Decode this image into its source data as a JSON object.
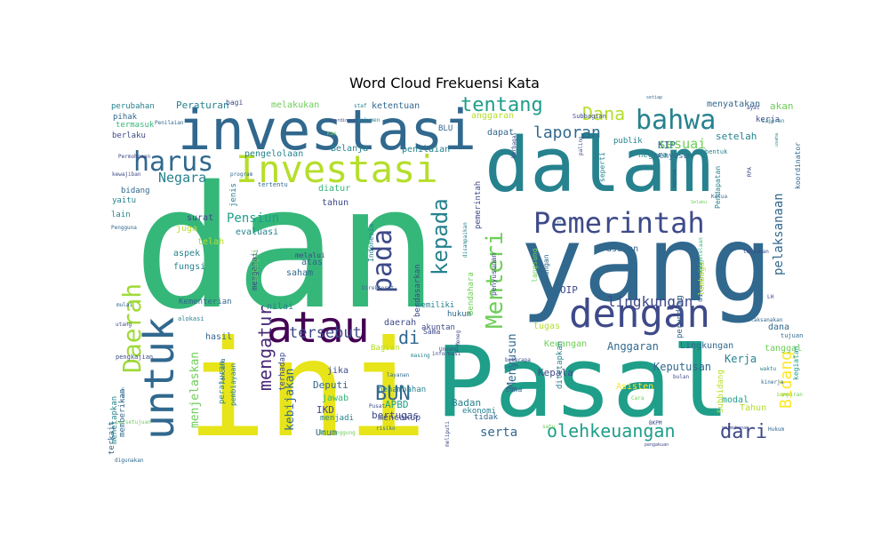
{
  "chart_data": {
    "type": "wordcloud",
    "title": "Word Cloud Frekuensi Kata",
    "colors": [
      "#440154",
      "#482878",
      "#3e4a89",
      "#31688e",
      "#26828e",
      "#1f9e89",
      "#35b779",
      "#6ece58",
      "#b5de2b",
      "#fde725"
    ],
    "words": [
      {
        "text": "dan",
        "weight": 100,
        "color": "#35b779"
      },
      {
        "text": "yang",
        "weight": 92,
        "color": "#31688e"
      },
      {
        "text": "ini",
        "weight": 90,
        "color": "#e7e419"
      },
      {
        "text": "Pasal",
        "weight": 86,
        "color": "#1f9e89"
      },
      {
        "text": "dalam",
        "weight": 68,
        "color": "#26828e"
      },
      {
        "text": "investasi",
        "weight": 60,
        "color": "#31688e"
      },
      {
        "text": "Investasi",
        "weight": 44,
        "color": "#b5de2b"
      },
      {
        "text": "dengan",
        "weight": 44,
        "color": "#3e4a89"
      },
      {
        "text": "untuk",
        "weight": 40,
        "color": "#31688e"
      },
      {
        "text": "atau",
        "weight": 42,
        "color": "#440154"
      },
      {
        "text": "Pemerintah",
        "weight": 34,
        "color": "#3e4a89"
      },
      {
        "text": "harus",
        "weight": 33,
        "color": "#31688e"
      },
      {
        "text": "bahwa",
        "weight": 32,
        "color": "#26828e"
      },
      {
        "text": "Daerah",
        "weight": 29,
        "color": "#a0da39"
      },
      {
        "text": "Menteri",
        "weight": 29,
        "color": "#6ece58"
      },
      {
        "text": "pada",
        "weight": 29,
        "color": "#3e4a89"
      },
      {
        "text": "kepada",
        "weight": 27,
        "color": "#26828e"
      },
      {
        "text": "tentang",
        "weight": 26,
        "color": "#1f9e89"
      },
      {
        "text": "mengatur",
        "weight": 22,
        "color": "#482878"
      },
      {
        "text": "Dana",
        "weight": 20,
        "color": "#b5de2b"
      },
      {
        "text": "dari",
        "weight": 20,
        "color": "#3e4a89"
      },
      {
        "text": "olehkeuangan",
        "weight": 20,
        "color": "#1f9e89"
      },
      {
        "text": "BUN",
        "weight": 20,
        "color": "#31688e"
      },
      {
        "text": "Bidang",
        "weight": 18,
        "color": "#fde725"
      },
      {
        "text": "laporan",
        "weight": 17,
        "color": "#31688e"
      },
      {
        "text": "lingkungan",
        "weight": 16,
        "color": "#3e4a89"
      },
      {
        "text": "tersebut",
        "weight": 16,
        "color": "#3e4a89"
      },
      {
        "text": "Negara",
        "weight": 14,
        "color": "#26828e"
      },
      {
        "text": "sesuai",
        "weight": 14,
        "color": "#6ece58"
      },
      {
        "text": "pelaksanaan",
        "weight": 13,
        "color": "#31688e"
      },
      {
        "text": "di",
        "weight": 15,
        "color": "#31688e"
      },
      {
        "text": "Pensiun",
        "weight": 13,
        "color": "#1f9e89"
      },
      {
        "text": "serta",
        "weight": 13,
        "color": "#31688e"
      },
      {
        "text": "kebijakan",
        "weight": 12,
        "color": "#31688e"
      },
      {
        "text": "menjelaskan",
        "weight": 12,
        "color": "#6ece58"
      },
      {
        "text": "Menyusun",
        "weight": 12,
        "color": "#31688e"
      },
      {
        "text": "Keputusan",
        "weight": 12,
        "color": "#31688e"
      },
      {
        "text": "Kerja",
        "weight": 12,
        "color": "#26828e"
      },
      {
        "text": "Anggaran",
        "weight": 12,
        "color": "#31688e"
      },
      {
        "text": "Deputi",
        "weight": 11,
        "color": "#31688e"
      },
      {
        "text": "Kepala",
        "weight": 11,
        "color": "#3e4a89"
      },
      {
        "text": "bertugas",
        "weight": 10,
        "color": "#3e4a89"
      },
      {
        "text": "Badan",
        "weight": 10,
        "color": "#26828e"
      },
      {
        "text": "setelah",
        "weight": 10,
        "color": "#26828e"
      },
      {
        "text": "akan",
        "weight": 10,
        "color": "#6ece58"
      },
      {
        "text": "KIP",
        "weight": 10,
        "color": "#31688e"
      },
      {
        "text": "OIP",
        "weight": 10,
        "color": "#3e4a89"
      },
      {
        "text": "IKD",
        "weight": 10,
        "color": "#3e4a89"
      },
      {
        "text": "APBD",
        "weight": 10,
        "color": "#1f9e89"
      },
      {
        "text": "Peraturan",
        "weight": 11,
        "color": "#26828e"
      },
      {
        "text": "menyatakan",
        "weight": 10,
        "color": "#31688e"
      },
      {
        "text": "Lingkungan",
        "weight": 10,
        "color": "#31688e"
      },
      {
        "text": "Keuangan",
        "weight": 10,
        "color": "#6ece58"
      },
      {
        "text": "evaluasi",
        "weight": 10,
        "color": "#26828e"
      },
      {
        "text": "surat",
        "weight": 10,
        "color": "#3e4a89"
      },
      {
        "text": "usulan",
        "weight": 10,
        "color": "#31688e"
      },
      {
        "text": "tugas",
        "weight": 10,
        "color": "#b5de2b"
      },
      {
        "text": "daerah",
        "weight": 10,
        "color": "#3e4a89"
      },
      {
        "text": "mencakup",
        "weight": 9,
        "color": "#3e4a89"
      },
      {
        "text": "Asisten",
        "weight": 9,
        "color": "#fde725"
      },
      {
        "text": "dana",
        "weight": 9,
        "color": "#31688e"
      },
      {
        "text": "Tahun",
        "weight": 9,
        "color": "#b5de2b"
      },
      {
        "text": "modal",
        "weight": 9,
        "color": "#1f9e89"
      },
      {
        "text": "pengelolaan",
        "weight": 9,
        "color": "#26828e"
      },
      {
        "text": "penilaian",
        "weight": 9,
        "color": "#26828e"
      },
      {
        "text": "anggaran",
        "weight": 9,
        "color": "#b5de2b"
      },
      {
        "text": "ketentuan",
        "weight": 9,
        "color": "#31688e"
      },
      {
        "text": "melakukan",
        "weight": 9,
        "color": "#6ece58"
      },
      {
        "text": "Belanja",
        "weight": 9,
        "color": "#26828e"
      },
      {
        "text": "dapat",
        "weight": 9,
        "color": "#31688e"
      },
      {
        "text": "diatur",
        "weight": 9,
        "color": "#35b779"
      },
      {
        "text": "tahun",
        "weight": 9,
        "color": "#3e4a89"
      },
      {
        "text": "saham",
        "weight": 9,
        "color": "#31688e"
      },
      {
        "text": "atas",
        "weight": 9,
        "color": "#31688e"
      },
      {
        "text": "aspek",
        "weight": 9,
        "color": "#26828e"
      },
      {
        "text": "fungsi",
        "weight": 9,
        "color": "#26828e"
      },
      {
        "text": "telah",
        "weight": 9,
        "color": "#b5de2b"
      },
      {
        "text": "juga",
        "weight": 9,
        "color": "#b5de2b"
      },
      {
        "text": "hasil",
        "weight": 9,
        "color": "#31688e"
      },
      {
        "text": "nilai",
        "weight": 9,
        "color": "#26828e"
      },
      {
        "text": "jika",
        "weight": 9,
        "color": "#3e4a89"
      },
      {
        "text": "jawab",
        "weight": 9,
        "color": "#35b779"
      },
      {
        "text": "menjadi",
        "weight": 8,
        "color": "#26828e"
      },
      {
        "text": "Umum",
        "weight": 9,
        "color": "#31688e"
      },
      {
        "text": "tanggal",
        "weight": 9,
        "color": "#6ece58"
      },
      {
        "text": "Kementerian",
        "weight": 8,
        "color": "#31688e"
      },
      {
        "text": "hukum",
        "weight": 8,
        "color": "#31688e"
      },
      {
        "text": "memiliki",
        "weight": 8,
        "color": "#26828e"
      },
      {
        "text": "tidak",
        "weight": 8,
        "color": "#31688e"
      },
      {
        "text": "ekonomi",
        "weight": 8,
        "color": "#26828e"
      },
      {
        "text": "bidang",
        "weight": 8,
        "color": "#31688e"
      },
      {
        "text": "yaitu",
        "weight": 8,
        "color": "#26828e"
      },
      {
        "text": "berlaku",
        "weight": 8,
        "color": "#3e4a89"
      },
      {
        "text": "pihak",
        "weight": 8,
        "color": "#31688e"
      },
      {
        "text": "perubahan",
        "weight": 8,
        "color": "#26828e"
      },
      {
        "text": "BLU",
        "weight": 8,
        "color": "#31688e"
      },
      {
        "text": "publik",
        "weight": 8,
        "color": "#26828e"
      },
      {
        "text": "seperti",
        "weight": 8,
        "color": "#26828e"
      },
      {
        "text": "menyusun",
        "weight": 8,
        "color": "#31688e"
      },
      {
        "text": "negara",
        "weight": 8,
        "color": "#26828e"
      },
      {
        "text": "kerja",
        "weight": 8,
        "color": "#3e4a89"
      },
      {
        "text": "Bagian",
        "weight": 8,
        "color": "#b5de2b"
      },
      {
        "text": "Sama",
        "weight": 7,
        "color": "#3e4a89"
      },
      {
        "text": "akuntan",
        "weight": 8,
        "color": "#3e4a89"
      },
      {
        "text": "sama",
        "weight": 8,
        "color": "#31688e"
      },
      {
        "text": "penambahan",
        "weight": 8,
        "color": "#26828e"
      },
      {
        "text": "terhadap",
        "weight": 8,
        "color": "#3e4a89"
      },
      {
        "text": "lain",
        "weight": 8,
        "color": "#26828e"
      },
      {
        "text": "Pengguna",
        "weight": 6,
        "color": "#31688e"
      },
      {
        "text": "termasuk",
        "weight": 8,
        "color": "#35b779"
      },
      {
        "text": "memberikan",
        "weight": 8,
        "color": "#31688e"
      },
      {
        "text": "menetapkan",
        "weight": 8,
        "color": "#26828e"
      },
      {
        "text": "terkait",
        "weight": 8,
        "color": "#31688e"
      },
      {
        "text": "alokasi",
        "weight": 6,
        "color": "#26828e"
      },
      {
        "text": "pengkajian",
        "weight": 6,
        "color": "#3e4a89"
      },
      {
        "text": "rencana",
        "weight": 6,
        "color": "#31688e"
      },
      {
        "text": "peraturan",
        "weight": 8,
        "color": "#26828e"
      },
      {
        "text": "pembiayaan",
        "weight": 7,
        "color": "#26828e"
      },
      {
        "text": "mengenai",
        "weight": 8,
        "color": "#3e4a89"
      },
      {
        "text": "sebagai",
        "weight": 8,
        "color": "#6ece58"
      },
      {
        "text": "melalui",
        "weight": 7,
        "color": "#3e4a89"
      },
      {
        "text": "Indonesia",
        "weight": 7,
        "color": "#26828e"
      },
      {
        "text": "jenis",
        "weight": 8,
        "color": "#26828e"
      },
      {
        "text": "tertentu",
        "weight": 7,
        "color": "#31688e"
      },
      {
        "text": "berdasarkan",
        "weight": 8,
        "color": "#3e4a89"
      },
      {
        "text": "Bendahara",
        "weight": 8,
        "color": "#6ece58"
      },
      {
        "text": "pemerintah",
        "weight": 8,
        "color": "#3e4a89"
      },
      {
        "text": "undangan",
        "weight": 7,
        "color": "#31688e"
      },
      {
        "text": "langsung",
        "weight": 7,
        "color": "#6ece58"
      },
      {
        "text": "ditetapkan",
        "weight": 8,
        "color": "#26828e"
      },
      {
        "text": "penyusunan",
        "weight": 7,
        "color": "#3e4a89"
      },
      {
        "text": "perundang",
        "weight": 8,
        "color": "#31688e"
      },
      {
        "text": "dilakukan",
        "weight": 8,
        "color": "#31688e"
      },
      {
        "text": "lembaga",
        "weight": 8,
        "color": "#b5de2b"
      },
      {
        "text": "Pendapatan",
        "weight": 7,
        "color": "#26828e"
      },
      {
        "text": "koordinator",
        "weight": 7,
        "color": "#31688e"
      },
      {
        "text": "bentuk",
        "weight": 6,
        "color": "#26828e"
      },
      {
        "text": "Subbidang",
        "weight": 8,
        "color": "#b5de2b"
      },
      {
        "text": "kegiatan",
        "weight": 7,
        "color": "#1f9e89"
      },
      {
        "text": "meliputi",
        "weight": 6,
        "color": "#3e4a89"
      },
      {
        "text": "disampaikan",
        "weight": 6,
        "color": "#26828e"
      },
      {
        "text": "Lampiran",
        "weight": 5,
        "color": "#6ece58"
      },
      {
        "text": "tujuan",
        "weight": 5,
        "color": "#31688e"
      },
      {
        "text": "waktu",
        "weight": 5,
        "color": "#26828e"
      },
      {
        "text": "Jika",
        "weight": 5,
        "color": "#31688e"
      },
      {
        "text": "LH",
        "weight": 5,
        "color": "#3e4a89"
      },
      {
        "text": "melaksanakan",
        "weight": 5,
        "color": "#31688e"
      },
      {
        "text": "telaahan",
        "weight": 4,
        "color": "#3e4a89"
      },
      {
        "text": "Ketua",
        "weight": 4,
        "color": "#31688e"
      },
      {
        "text": "Pengelolaan",
        "weight": 5,
        "color": "#35b779"
      },
      {
        "text": "kinerja",
        "weight": 5,
        "color": "#31688e"
      },
      {
        "text": "permohonan",
        "weight": 4,
        "color": "#3e4a89"
      },
      {
        "text": "BKPM",
        "weight": 4,
        "color": "#3e4a89"
      },
      {
        "text": "Hukum",
        "weight": 4,
        "color": "#31688e"
      },
      {
        "text": "pengakuan",
        "weight": 4,
        "color": "#3e4a89"
      },
      {
        "text": "bulan",
        "weight": 4,
        "color": "#3e4a89"
      },
      {
        "text": "Cara",
        "weight": 4,
        "color": "#6ece58"
      },
      {
        "text": "satu",
        "weight": 4,
        "color": "#6ece58"
      },
      {
        "text": "Bank",
        "weight": 4,
        "color": "#26828e"
      },
      {
        "text": "beberapa",
        "weight": 4,
        "color": "#3e4a89"
      },
      {
        "text": "Pusat",
        "weight": 4,
        "color": "#3e4a89"
      },
      {
        "text": "informasi",
        "weight": 4,
        "color": "#3e4a89"
      },
      {
        "text": "masing",
        "weight": 4,
        "color": "#26828e"
      },
      {
        "text": "layanan",
        "weight": 4,
        "color": "#31688e"
      },
      {
        "text": "risiko",
        "weight": 4,
        "color": "#31688e"
      },
      {
        "text": "bertanggung",
        "weight": 4,
        "color": "#6ece58"
      },
      {
        "text": "digunakan",
        "weight": 4,
        "color": "#31688e"
      },
      {
        "text": "persetujuan",
        "weight": 4,
        "color": "#6ece58"
      },
      {
        "text": "lebih",
        "weight": 4,
        "color": "#31688e"
      },
      {
        "text": "mulai",
        "weight": 4,
        "color": "#31688e"
      },
      {
        "text": "utang",
        "weight": 4,
        "color": "#3e4a89"
      },
      {
        "text": "program",
        "weight": 4,
        "color": "#31688e"
      },
      {
        "text": "Direktorat",
        "weight": 4,
        "color": "#31688e"
      },
      {
        "text": "Meneg",
        "weight": 4,
        "color": "#3e4a89"
      },
      {
        "text": "Undang",
        "weight": 4,
        "color": "#3e4a89"
      },
      {
        "text": "staf",
        "weight": 4,
        "color": "#26828e"
      },
      {
        "text": "koordinasi",
        "weight": 4,
        "color": "#3e4a89"
      },
      {
        "text": "Kas",
        "weight": 4,
        "color": "#6ece58"
      },
      {
        "text": "dokumen",
        "weight": 5,
        "color": "#26828e"
      },
      {
        "text": "Subbagian",
        "weight": 4,
        "color": "#3e4a89"
      },
      {
        "text": "setiap",
        "weight": 4,
        "color": "#31688e"
      },
      {
        "text": "ayat",
        "weight": 4,
        "color": "#3e4a89"
      },
      {
        "text": "Laporan",
        "weight": 4,
        "color": "#26828e"
      },
      {
        "text": "paling",
        "weight": 4,
        "color": "#3e4a89"
      },
      {
        "text": "itu",
        "weight": 5,
        "color": "#31688e"
      },
      {
        "text": "berbagai",
        "weight": 4,
        "color": "#3e4a89"
      },
      {
        "text": "lainnya",
        "weight": 4,
        "color": "#3e4a89"
      },
      {
        "text": "Selaku",
        "weight": 4,
        "color": "#6ece58"
      },
      {
        "text": "RPA",
        "weight": 4,
        "color": "#3e4a89"
      },
      {
        "text": "usaha",
        "weight": 4,
        "color": "#26828e"
      },
      {
        "text": "kewajiban",
        "weight": 4,
        "color": "#3e4a89"
      },
      {
        "text": "Permohonan",
        "weight": 4,
        "color": "#3e4a89"
      },
      {
        "text": "Penilaian",
        "weight": 5,
        "color": "#31688e"
      },
      {
        "text": "bagi",
        "weight": 7,
        "color": "#3e4a89"
      }
    ]
  }
}
